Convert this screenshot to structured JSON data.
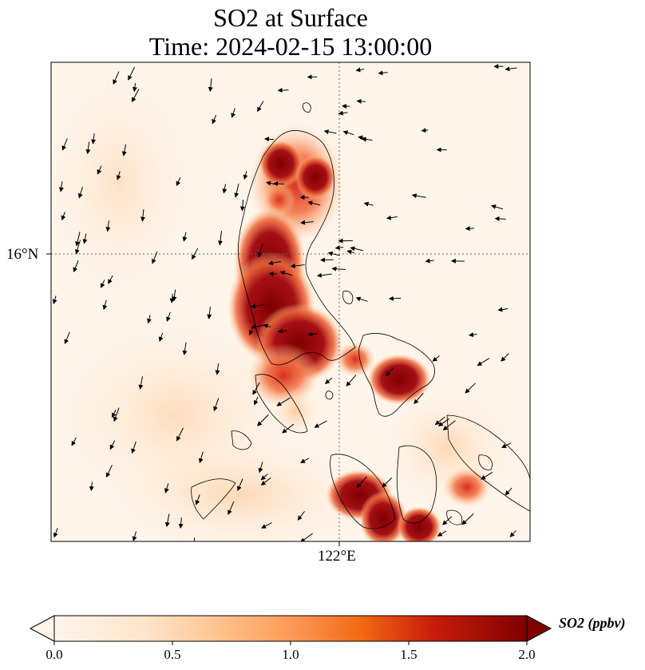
{
  "title": {
    "line1": "SO2 at Surface",
    "line2": "Time: 2024-02-15 13:00:00"
  },
  "axes": {
    "lat_label": "16°N",
    "lon_label": "122°E"
  },
  "colorbar": {
    "label": "SO2 (ppbv)",
    "ticks": [
      "0.0",
      "0.5",
      "1.0",
      "1.5",
      "2.0"
    ],
    "min": 0.0,
    "max": 2.0,
    "extend": "both",
    "colormap": [
      "#fff5eb",
      "#fdd8b0",
      "#fdab67",
      "#f4713b",
      "#d73f0b",
      "#a50f15",
      "#7f0000"
    ]
  },
  "colors": {
    "background": "#fff5eb",
    "coastline": "#000000",
    "gridline": "#666666",
    "wind_arrow": "#000000"
  }
}
